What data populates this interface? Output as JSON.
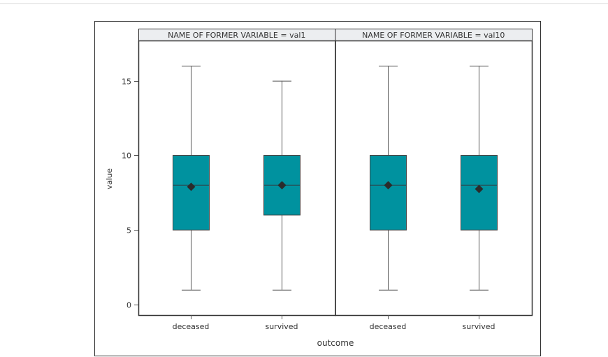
{
  "chart_data": {
    "type": "box",
    "xlabel": "outcome",
    "ylabel": "value",
    "ylim": [
      -0.7,
      17.7
    ],
    "yticks": [
      0,
      5,
      10,
      15
    ],
    "categories": [
      "deceased",
      "survived"
    ],
    "box_color": "#00929f",
    "panels": [
      {
        "header": "NAME OF FORMER VARIABLE = val1",
        "boxes": [
          {
            "category": "deceased",
            "min": 1,
            "q1": 5,
            "median": 8,
            "q3": 10,
            "max": 16,
            "mean": 7.9
          },
          {
            "category": "survived",
            "min": 1,
            "q1": 6,
            "median": 8,
            "q3": 10,
            "max": 15,
            "mean": 8.0
          }
        ]
      },
      {
        "header": "NAME OF FORMER VARIABLE = val10",
        "boxes": [
          {
            "category": "deceased",
            "min": 1,
            "q1": 5,
            "median": 8,
            "q3": 10,
            "max": 16,
            "mean": 8.0
          },
          {
            "category": "survived",
            "min": 1,
            "q1": 5,
            "median": 8,
            "q3": 10,
            "max": 16,
            "mean": 7.75
          }
        ]
      }
    ]
  }
}
